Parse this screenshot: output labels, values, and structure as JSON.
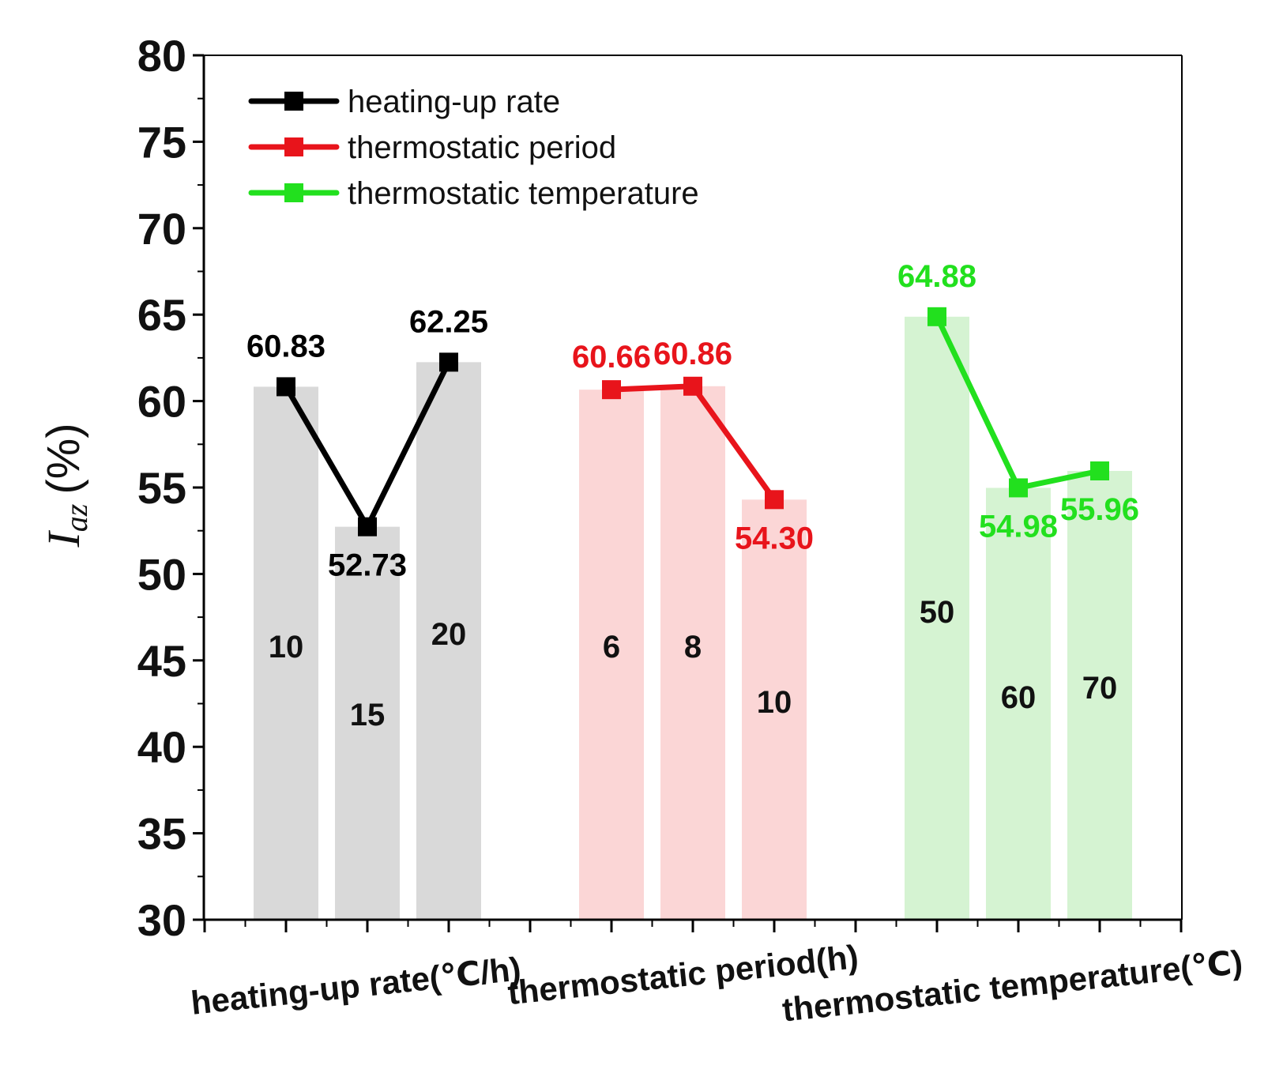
{
  "chart_data": {
    "type": "bar",
    "title": "",
    "xlabel": "",
    "ylabel": {
      "symbol": "I",
      "subscript": "az",
      "unit": "(%)"
    },
    "ylim": [
      30,
      80
    ],
    "yticks": [
      "30",
      "35",
      "40",
      "45",
      "50",
      "55",
      "60",
      "65",
      "70",
      "75",
      "80"
    ],
    "grid": false,
    "legend_position": "top-left",
    "groups": [
      {
        "name": "heating-up rate",
        "axis_label": "heating-up rate(℃/h)",
        "color": "#000000",
        "bar_color": "#d9d9d9",
        "levels": [
          "10",
          "15",
          "20"
        ],
        "values": [
          60.83,
          52.73,
          62.25
        ],
        "value_labels": [
          "60.83",
          "52.73",
          "62.25"
        ]
      },
      {
        "name": "thermostatic period",
        "axis_label": "thermostatic period(h)",
        "color": "#e8141b",
        "bar_color": "#fbd6d6",
        "levels": [
          "6",
          "8",
          "10"
        ],
        "values": [
          60.66,
          60.86,
          54.3
        ],
        "value_labels": [
          "60.66",
          "60.86",
          "54.30"
        ]
      },
      {
        "name": "thermostatic temperature",
        "axis_label": "thermostatic temperature(℃)",
        "color": "#22e01e",
        "bar_color": "#d5f3d2",
        "levels": [
          "50",
          "60",
          "70"
        ],
        "values": [
          64.88,
          54.98,
          55.96
        ],
        "value_labels": [
          "64.88",
          "54.98",
          "55.96"
        ]
      }
    ]
  }
}
